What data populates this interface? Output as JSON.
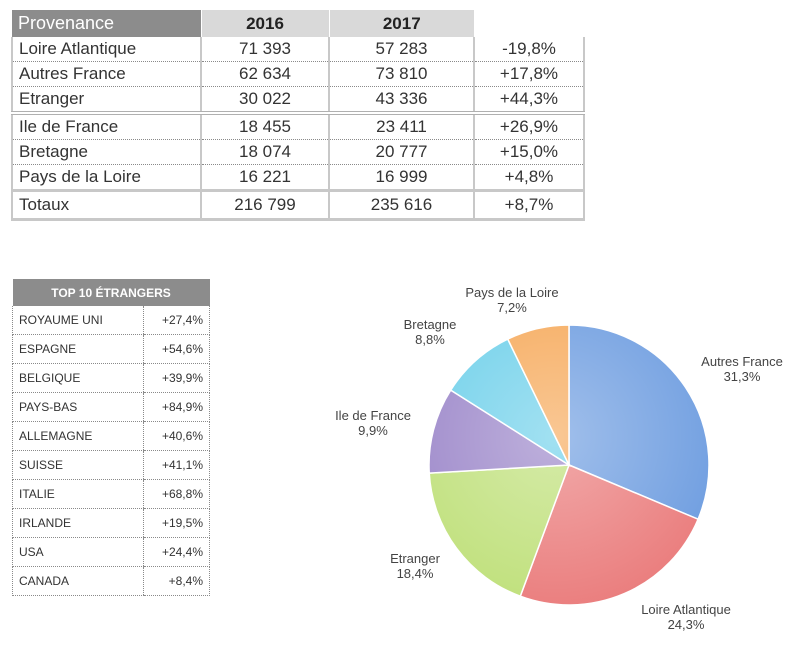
{
  "main_table": {
    "headers": [
      "Provenance",
      "2016",
      "2017",
      ""
    ],
    "rows": [
      {
        "name": "Loire Atlantique",
        "y2016": "71 393",
        "y2017": "57 283",
        "change": "-19,8%"
      },
      {
        "name": "Autres France",
        "y2016": "62 634",
        "y2017": "73 810",
        "change": "+17,8%"
      },
      {
        "name": "Etranger",
        "y2016": "30 022",
        "y2017": "43 336",
        "change": "+44,3%"
      },
      {
        "name": "Ile de France",
        "y2016": "18 455",
        "y2017": "23 411",
        "change": "+26,9%"
      },
      {
        "name": "Bretagne",
        "y2016": "18 074",
        "y2017": "20 777",
        "change": "+15,0%"
      },
      {
        "name": "Pays de la Loire",
        "y2016": "16 221",
        "y2017": "16 999",
        "change": "+4,8%"
      }
    ],
    "total": {
      "name": "Totaux",
      "y2016": "216 799",
      "y2017": "235 616",
      "change": "+8,7%"
    }
  },
  "top10": {
    "title": "TOP 10 ÉTRANGERS",
    "rows": [
      {
        "country": "ROYAUME UNI",
        "change": "+27,4%"
      },
      {
        "country": "ESPAGNE",
        "change": "+54,6%"
      },
      {
        "country": "BELGIQUE",
        "change": "+39,9%"
      },
      {
        "country": "PAYS-BAS",
        "change": "+84,9%"
      },
      {
        "country": "ALLEMAGNE",
        "change": "+40,6%"
      },
      {
        "country": "SUISSE",
        "change": "+41,1%"
      },
      {
        "country": "ITALIE",
        "change": "+68,8%"
      },
      {
        "country": "IRLANDE",
        "change": "+19,5%"
      },
      {
        "country": "USA",
        "change": "+24,4%"
      },
      {
        "country": "CANADA",
        "change": "+8,4%"
      }
    ]
  },
  "chart_data": {
    "type": "pie",
    "title": "",
    "slices": [
      {
        "label": "Autres France",
        "value": 31.3,
        "value_label": "31,3%",
        "color": "#6e9de0"
      },
      {
        "label": "Loire Atlantique",
        "value": 24.3,
        "value_label": "24,3%",
        "color": "#ea7c7c"
      },
      {
        "label": "Etranger",
        "value": 18.4,
        "value_label": "18,4%",
        "color": "#bfe07a"
      },
      {
        "label": "Ile de France",
        "value": 9.9,
        "value_label": "9,9%",
        "color": "#9b86c9"
      },
      {
        "label": "Bretagne",
        "value": 8.8,
        "value_label": "8,8%",
        "color": "#6fd0ea"
      },
      {
        "label": "Pays de la Loire",
        "value": 7.2,
        "value_label": "7,2%",
        "color": "#f6a95a"
      }
    ],
    "start_angle_deg": 0,
    "direction": "clockwise",
    "legend": "none"
  }
}
